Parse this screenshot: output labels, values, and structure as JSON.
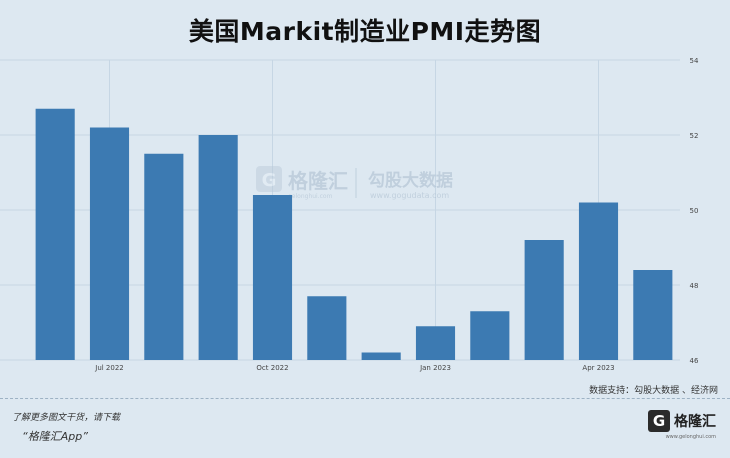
{
  "chart_data": {
    "type": "bar",
    "title": "美国Markit制造业PMI走势图",
    "categories": [
      "2022-06",
      "2022-07",
      "2022-08",
      "2022-09",
      "2022-10",
      "2022-11",
      "2022-12",
      "2023-01",
      "2023-02",
      "2023-03",
      "2023-04",
      "2023-05"
    ],
    "values": [
      52.7,
      52.2,
      51.5,
      52.0,
      50.4,
      47.7,
      46.2,
      46.9,
      47.3,
      49.2,
      50.2,
      48.4
    ],
    "x_tick_labels": [
      {
        "index": 1,
        "label": "Jul 2022"
      },
      {
        "index": 4,
        "label": "Oct 2022"
      },
      {
        "index": 7,
        "label": "Jan 2023"
      },
      {
        "index": 10,
        "label": "Apr 2023"
      }
    ],
    "y_ticks": [
      46,
      48,
      50,
      52,
      54
    ],
    "ylim": [
      46,
      54
    ],
    "y_axis_side": "right",
    "grid": true,
    "bar_color": "#3c7ab2"
  },
  "watermark": {
    "brand": "格隆汇",
    "brand_sub": "gelonghui.com",
    "partner": "勾股大数据",
    "partner_url": "www.gogudata.com"
  },
  "footer": {
    "source": "数据支持：勾股大数据 、经济网",
    "promo_line1": "了解更多图文干货，请下载",
    "promo_line2": "“格隆汇App”",
    "brand_mark": "G",
    "brand_name": "格隆汇",
    "brand_url": "www.gelonghui.com"
  }
}
